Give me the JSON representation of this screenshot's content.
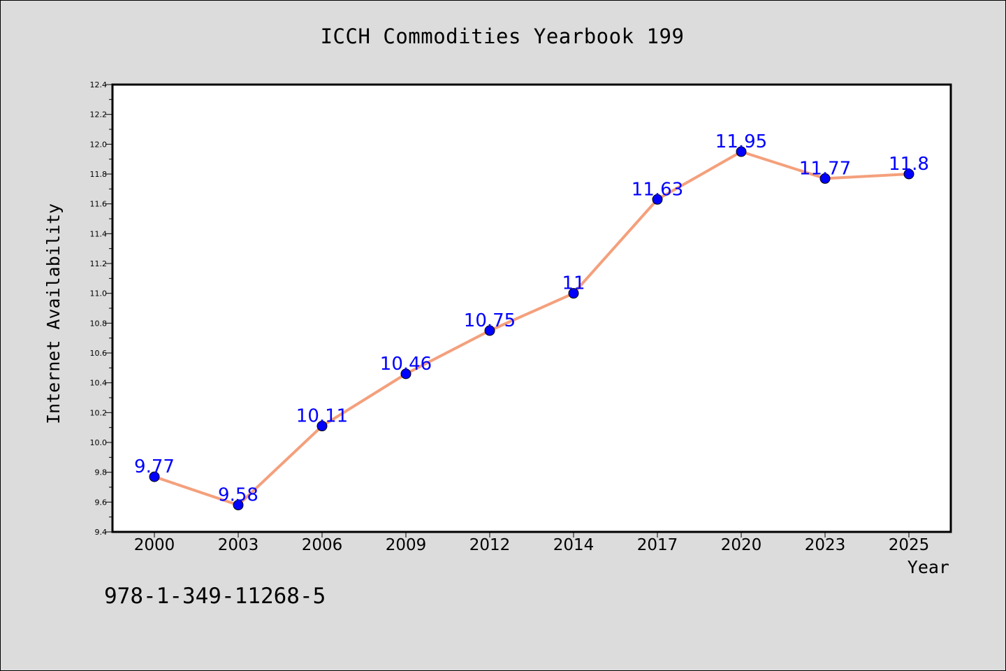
{
  "page": {
    "title": "ICCH Commodities Yearbook 199",
    "isbn": "978-1-349-11268-5"
  },
  "chart_data": {
    "type": "line",
    "title": "ICCH Commodities Yearbook 199",
    "xlabel": "Year",
    "ylabel": "Internet Availability",
    "categories": [
      "2000",
      "2003",
      "2006",
      "2009",
      "2012",
      "2014",
      "2017",
      "2020",
      "2023",
      "2025"
    ],
    "series": [
      {
        "values": [
          9.77,
          9.58,
          10.11,
          10.46,
          10.75,
          11,
          11.63,
          11.95,
          11.77,
          11.8
        ],
        "data_labels": [
          "9.77",
          "9.58",
          "10.11",
          "10.46",
          "10.75",
          "11",
          "11.63",
          "11.95",
          "11.77",
          "11.8"
        ],
        "line_color": "#f4a07c",
        "marker_color": "#0000ff"
      }
    ],
    "ylim": [
      9.4,
      12.4
    ],
    "yticks": [
      "9.4",
      "9.6",
      "9.8",
      "10.0",
      "10.2",
      "10.4",
      "10.6",
      "10.8",
      "11.0",
      "11.2",
      "11.4",
      "11.6",
      "11.8",
      "12.0",
      "12.2",
      "12.4"
    ],
    "grid": false,
    "legend": "none",
    "colors": {
      "background": "#dcdcdc",
      "plot_background": "#ffffff",
      "label_color": "#0000ff"
    }
  }
}
